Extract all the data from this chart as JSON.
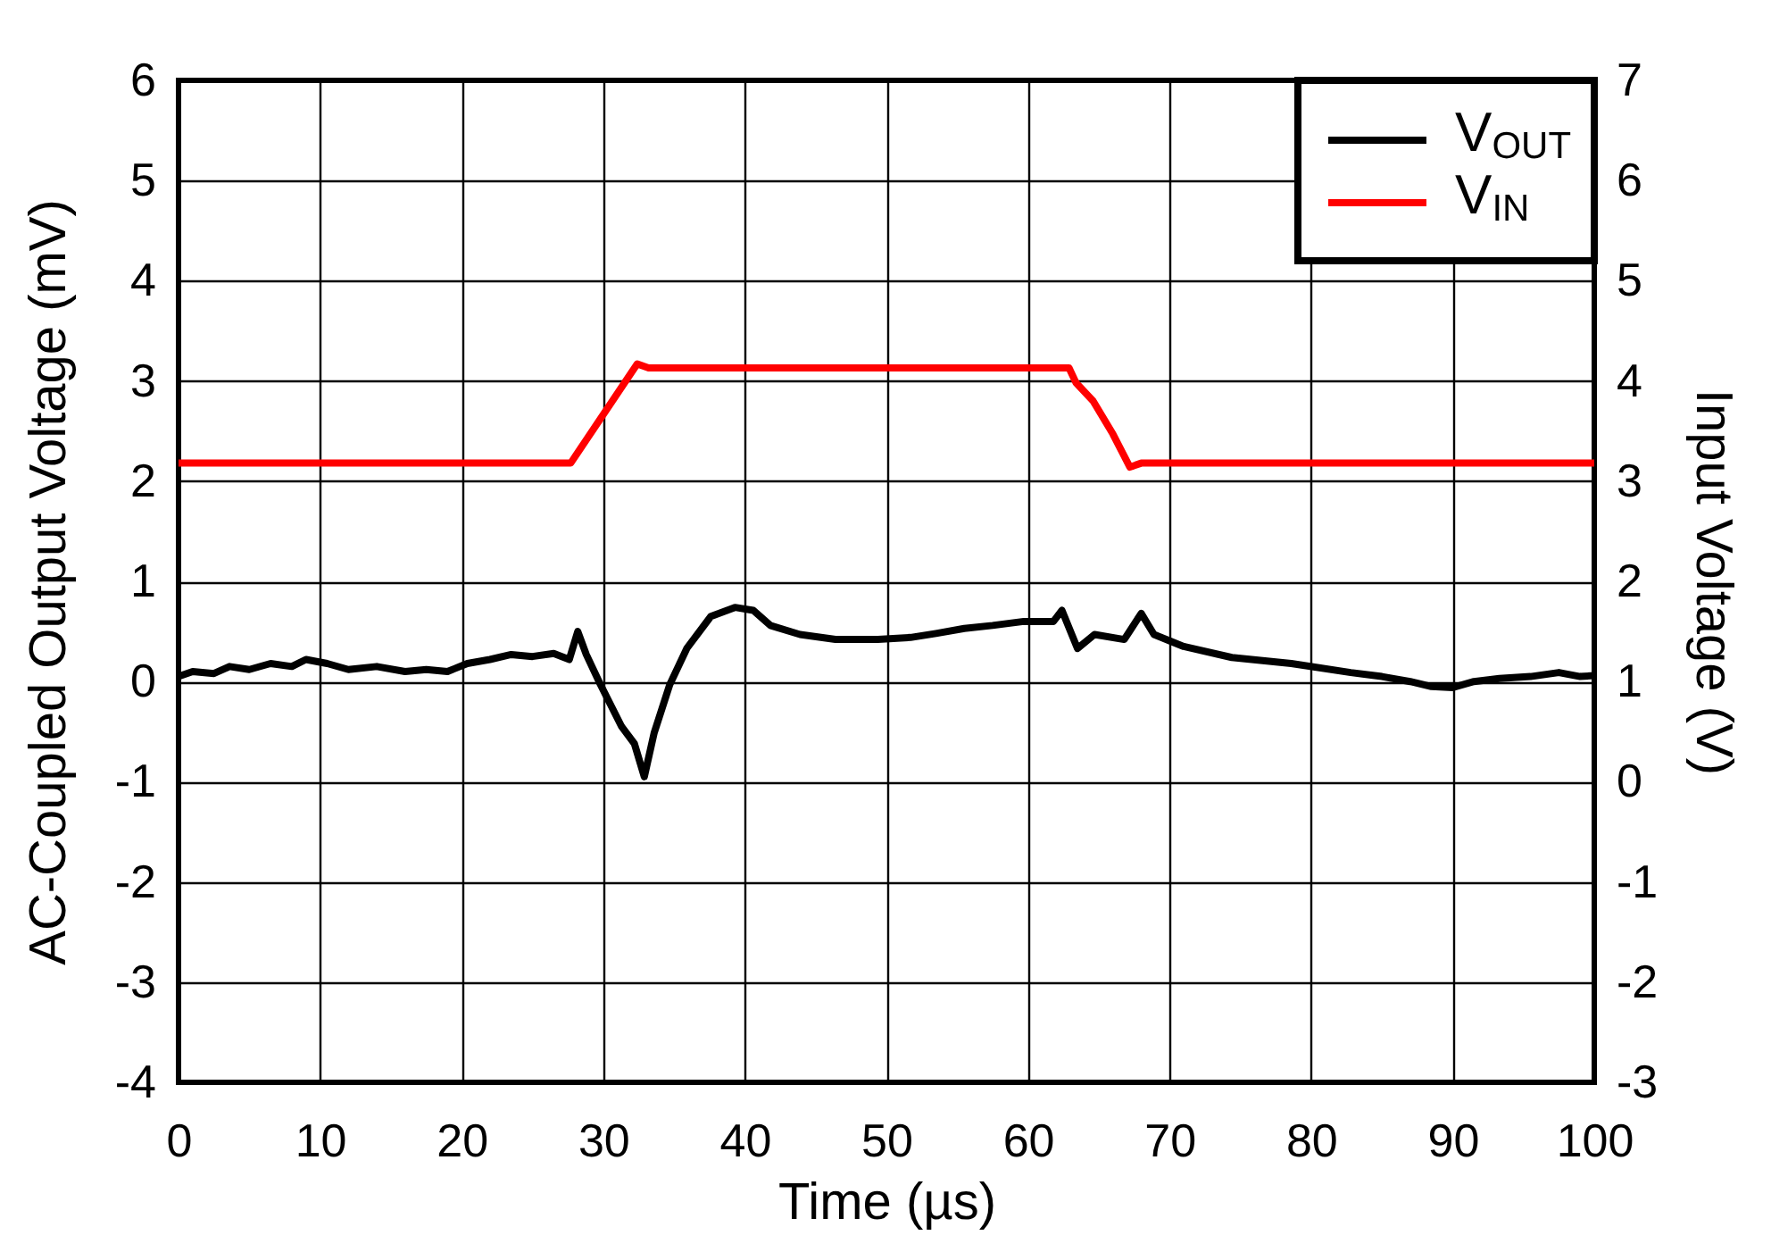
{
  "chart_data": {
    "type": "line",
    "xlabel": "Time (µs)",
    "ylabel": "AC-Coupled Output Voltage (mV)",
    "y2label": "Input Voltage (V)",
    "xlim": [
      0,
      100
    ],
    "xticks": [
      0,
      10,
      20,
      30,
      40,
      50,
      60,
      70,
      80,
      90,
      100
    ],
    "ylim": [
      -4,
      6
    ],
    "yticks": [
      -4,
      -3,
      -2,
      -1,
      0,
      1,
      2,
      3,
      4,
      5,
      6
    ],
    "y2lim": [
      -3,
      7
    ],
    "y2ticks": [
      -3,
      -2,
      -1,
      0,
      1,
      2,
      3,
      4,
      5,
      6,
      7
    ],
    "grid": true,
    "legend": "top right",
    "line_style": "solid",
    "series": [
      {
        "name": "V$_{OUT}$",
        "color": "#000000",
        "x": [
          0,
          1,
          2.5,
          3.6,
          5,
          6.5,
          8,
          9,
          10.5,
          12,
          14,
          16,
          17.5,
          19,
          20.4,
          22,
          23.5,
          25,
          26.5,
          27.6,
          28.2,
          28.8,
          29.8,
          31.3,
          32.2,
          32.9,
          33.6,
          34.7,
          35.9,
          37.6,
          39.3,
          40.6,
          41.8,
          43.9,
          46.4,
          49.4,
          51.7,
          53.5,
          55.5,
          57.5,
          59.7,
          61.8,
          62.4,
          63.5,
          64.7,
          66.8,
          68,
          68.9,
          71,
          74.4,
          78.6,
          82.8,
          85,
          87,
          88.5,
          90,
          91.5,
          93.3,
          95.5,
          97.5,
          99,
          100
        ],
        "values": [
          0.05,
          0.1,
          0.08,
          0.15,
          0.12,
          0.18,
          0.15,
          0.22,
          0.18,
          0.12,
          0.15,
          0.1,
          0.12,
          0.1,
          0.18,
          0.22,
          0.27,
          0.25,
          0.28,
          0.22,
          0.5,
          0.27,
          -0.03,
          -0.45,
          -0.62,
          -0.95,
          -0.51,
          -0.03,
          0.33,
          0.65,
          0.74,
          0.71,
          0.56,
          0.47,
          0.42,
          0.42,
          0.44,
          0.48,
          0.53,
          0.56,
          0.6,
          0.6,
          0.71,
          0.33,
          0.47,
          0.42,
          0.68,
          0.47,
          0.35,
          0.24,
          0.18,
          0.09,
          0.05,
          0.0,
          -0.05,
          -0.06,
          0.0,
          0.03,
          0.05,
          0.09,
          0.05,
          0.06
        ]
      },
      {
        "name": "V$_{IN}$",
        "color": "#ff0000",
        "axis": "y2",
        "x": [
          0,
          10,
          20,
          27.7,
          32.4,
          33.2,
          40,
          50,
          60,
          62.9,
          63.4,
          64.6,
          66,
          67.2,
          68,
          70,
          80,
          90,
          100
        ],
        "values": [
          3.18,
          3.18,
          3.18,
          3.18,
          4.17,
          4.13,
          4.13,
          4.13,
          4.13,
          4.13,
          3.98,
          3.8,
          3.47,
          3.14,
          3.18,
          3.18,
          3.18,
          3.18,
          3.18
        ]
      }
    ]
  }
}
